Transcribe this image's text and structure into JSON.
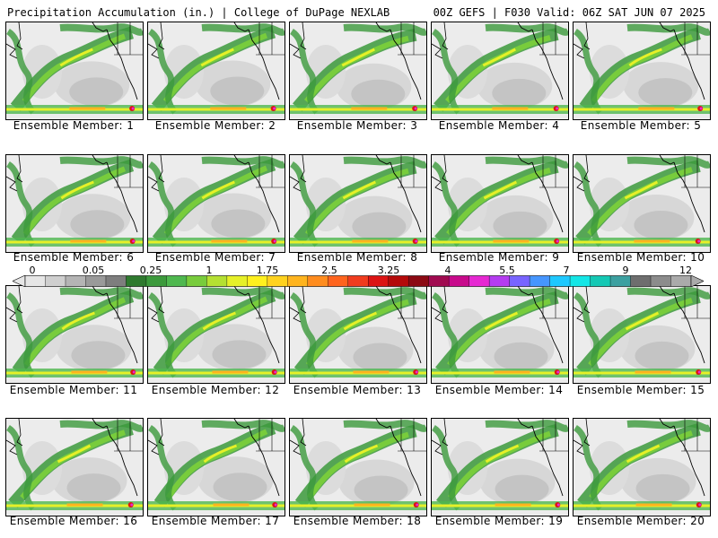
{
  "header": {
    "title": "Precipitation Accumulation (in.) | College of DuPage NEXLAB",
    "run_info": "00Z GEFS | F030 Valid: 06Z SAT JUN 07 2025"
  },
  "panels": [
    "Ensemble Member: 1",
    "Ensemble Member: 2",
    "Ensemble Member: 3",
    "Ensemble Member: 4",
    "Ensemble Member: 5",
    "Ensemble Member: 6",
    "Ensemble Member: 7",
    "Ensemble Member: 8",
    "Ensemble Member: 9",
    "Ensemble Member: 10",
    "Ensemble Member: 11",
    "Ensemble Member: 12",
    "Ensemble Member: 13",
    "Ensemble Member: 14",
    "Ensemble Member: 15",
    "Ensemble Member: 16",
    "Ensemble Member: 17",
    "Ensemble Member: 18",
    "Ensemble Member: 19",
    "Ensemble Member: 20"
  ],
  "colorbar": {
    "labels": [
      "0",
      "0.05",
      "0.25",
      "1",
      "1.75",
      "2.5",
      "3.25",
      "4",
      "5.5",
      "7",
      "9",
      "12"
    ],
    "colors": [
      "#e6e6e6",
      "#cfcfcf",
      "#b4b4b4",
      "#9a9a9a",
      "#7e7e7e",
      "#2f7a2f",
      "#3c9a3c",
      "#4fb84f",
      "#78cc3c",
      "#b4e032",
      "#e6f028",
      "#fff01e",
      "#ffd21e",
      "#ffb41e",
      "#ff8c1e",
      "#ff641e",
      "#f03c1e",
      "#dc1414",
      "#b40a0a",
      "#8c0a14",
      "#a00a50",
      "#c80a8c",
      "#e628d2",
      "#b43cf0",
      "#7864ff",
      "#4696ff",
      "#1ec8ff",
      "#14e6e6",
      "#14c8b4",
      "#3ca0a0",
      "#6e6e6e",
      "#8c8c8c",
      "#aaaaaa"
    ]
  }
}
